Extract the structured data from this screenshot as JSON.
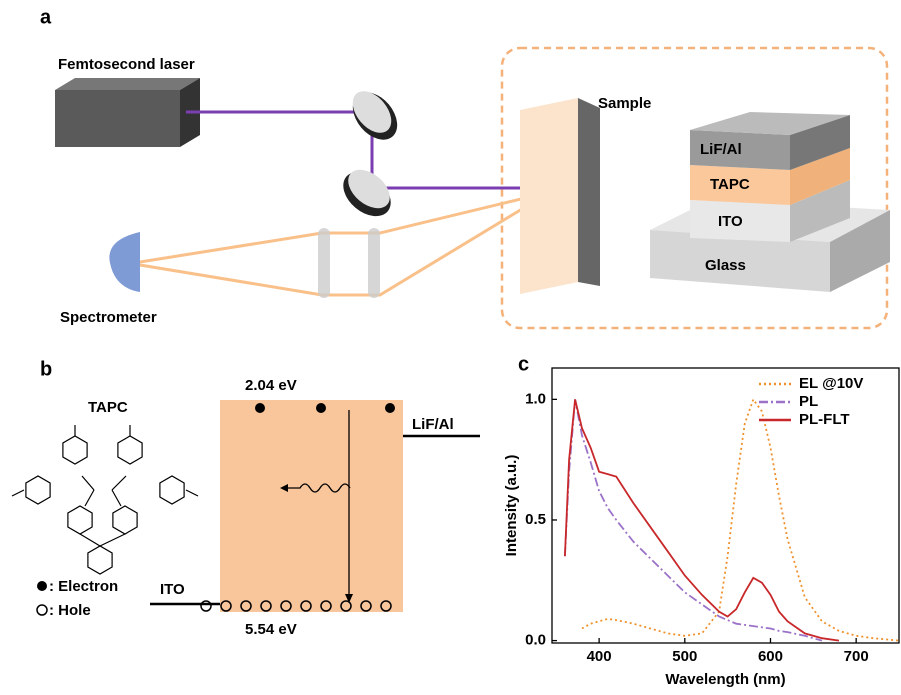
{
  "panel_a": {
    "label": "a",
    "laser": "Femtosecond laser",
    "spectrometer": "Spectrometer",
    "sample": "Sample",
    "layers": [
      "LiF/Al",
      "TAPC",
      "ITO",
      "Glass"
    ]
  },
  "panel_b": {
    "label": "b",
    "molecule": "TAPC",
    "lumo": "2.04 eV",
    "homo": "5.54 eV",
    "cathode": "LiF/Al",
    "anode": "ITO",
    "electron": ": Electron",
    "hole": ": Hole"
  },
  "chart_data": {
    "type": "line",
    "label": "c",
    "x_label": "Wavelength (nm)",
    "y_label": "Intensity (a.u.)",
    "x": [
      360,
      365,
      372,
      380,
      390,
      400,
      410,
      420,
      440,
      460,
      480,
      500,
      520,
      540,
      550,
      560,
      570,
      580,
      590,
      600,
      610,
      620,
      640,
      660,
      680,
      700,
      720,
      750
    ],
    "series": [
      {
        "name": "EL @10V",
        "color": "#f0902a",
        "dash": "2 3",
        "values": [
          null,
          null,
          null,
          0.05,
          0.07,
          0.08,
          0.09,
          0.085,
          0.07,
          0.05,
          0.03,
          0.02,
          0.03,
          0.12,
          0.35,
          0.65,
          0.9,
          1.0,
          0.95,
          0.8,
          0.6,
          0.42,
          0.18,
          0.08,
          0.04,
          0.02,
          0.01,
          0.0
        ]
      },
      {
        "name": "PL",
        "color": "#9b72c8",
        "dash": "9 3 2 3",
        "values": [
          0.35,
          0.7,
          1.0,
          0.85,
          0.74,
          0.62,
          0.55,
          0.5,
          0.41,
          0.34,
          0.27,
          0.2,
          0.15,
          0.1,
          0.085,
          0.07,
          0.065,
          0.06,
          0.055,
          0.05,
          0.04,
          0.035,
          0.02,
          0.0,
          null,
          null,
          null,
          null
        ]
      },
      {
        "name": "PL-FLT",
        "color": "#c8282a",
        "dash": "none",
        "values": [
          0.35,
          0.75,
          1.0,
          0.88,
          0.8,
          0.7,
          0.69,
          0.68,
          0.57,
          0.47,
          0.37,
          0.27,
          0.19,
          0.12,
          0.1,
          0.13,
          0.2,
          0.26,
          0.24,
          0.19,
          0.12,
          0.08,
          0.03,
          0.01,
          0.0,
          null,
          null,
          null
        ]
      }
    ],
    "xlim": [
      345,
      750
    ],
    "ylim": [
      -0.01,
      1.13
    ],
    "xticks": [
      400,
      500,
      600,
      700
    ],
    "yticks": [
      {
        "value": 0,
        "label": "0.0"
      },
      0.5,
      {
        "value": 1,
        "label": "1.0"
      }
    ],
    "legend": "upper-right"
  }
}
